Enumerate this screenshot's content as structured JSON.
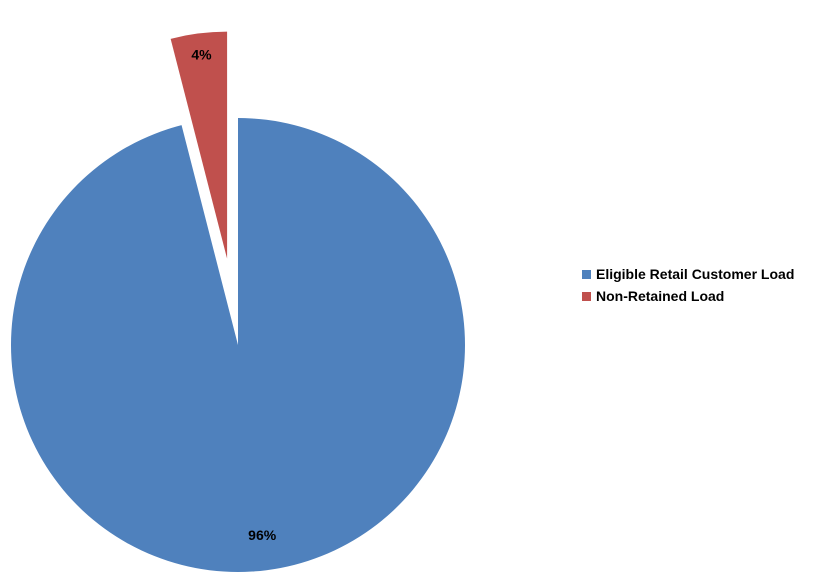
{
  "chart_data": {
    "type": "pie",
    "categories": [
      "Eligible Retail Customer Load",
      "Non-Retained Load"
    ],
    "values": [
      96,
      4
    ],
    "data_labels": [
      "96%",
      "4%"
    ],
    "colors": [
      "#4F81BD",
      "#C0504D"
    ],
    "exploded": [
      false,
      true
    ],
    "legend_position": "right",
    "title": ""
  }
}
